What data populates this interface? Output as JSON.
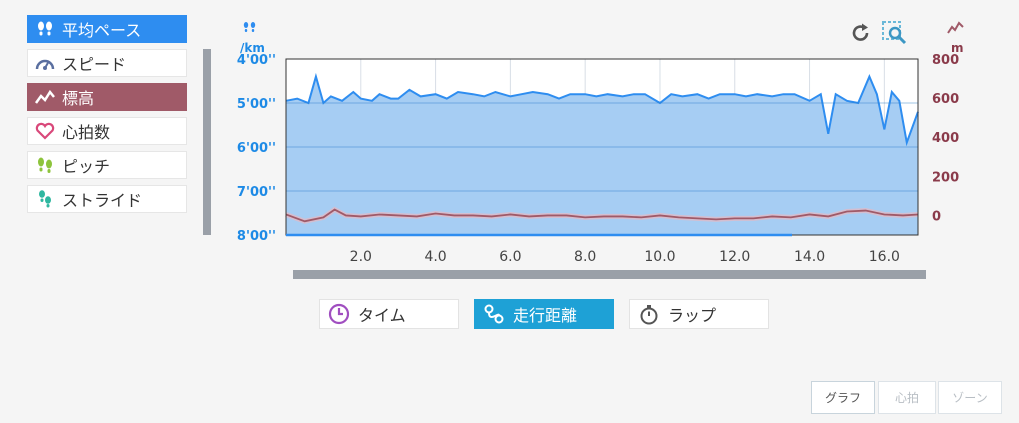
{
  "metrics": [
    {
      "label": "平均ペース",
      "icon": "footprints-icon",
      "state": "active-pace"
    },
    {
      "label": "スピード",
      "icon": "speedometer-icon",
      "state": ""
    },
    {
      "label": "標高",
      "icon": "elevation-icon",
      "state": "active-elev"
    },
    {
      "label": "心拍数",
      "icon": "heart-icon",
      "state": ""
    },
    {
      "label": "ピッチ",
      "icon": "pitch-footprints-icon",
      "state": ""
    },
    {
      "label": "ストライド",
      "icon": "stride-footprints-icon",
      "state": ""
    }
  ],
  "left_axis_unit": "/km",
  "right_axis_unit": "m",
  "x_modes": [
    {
      "label": "タイム",
      "icon": "clock-icon",
      "active": false
    },
    {
      "label": "走行距離",
      "icon": "route-icon",
      "active": true
    },
    {
      "label": "ラップ",
      "icon": "stopwatch-icon",
      "active": false
    }
  ],
  "tabs": [
    {
      "label": "グラフ",
      "disabled": false
    },
    {
      "label": "心拍",
      "disabled": true
    },
    {
      "label": "ゾーン",
      "disabled": true
    }
  ],
  "tools": {
    "reset_icon": "reset-icon",
    "zoom_icon": "zoom-icon"
  },
  "colors": {
    "pace": "#2e8df0",
    "elevation": "#a05a68",
    "active_mode": "#1ea1d6"
  },
  "chart_data": {
    "type": "area",
    "xlabel": "",
    "xlim": [
      0,
      16.9
    ],
    "x_ticks": [
      "2.0",
      "4.0",
      "6.0",
      "8.0",
      "10.0",
      "12.0",
      "14.0",
      "16.0"
    ],
    "x_tick_values": [
      2,
      4,
      6,
      8,
      10,
      12,
      14,
      16
    ],
    "y_left": {
      "label": "/km",
      "ticks": [
        "4'00''",
        "5'00''",
        "6'00''",
        "7'00''",
        "8'00''"
      ],
      "tick_minutes": [
        4,
        5,
        6,
        7,
        8
      ],
      "range_minutes": [
        4,
        8
      ]
    },
    "y_right": {
      "label": "m",
      "ticks": [
        "800",
        "600",
        "400",
        "200",
        "0"
      ],
      "tick_values": [
        800,
        600,
        400,
        200,
        0
      ],
      "range": [
        -100,
        800
      ]
    },
    "series": [
      {
        "axis": "left",
        "x": [
          0.0,
          0.3,
          0.6,
          0.8,
          1.0,
          1.2,
          1.5,
          1.8,
          2.0,
          2.3,
          2.5,
          2.8,
          3.0,
          3.3,
          3.6,
          4.0,
          4.3,
          4.6,
          5.0,
          5.3,
          5.6,
          6.0,
          6.3,
          6.6,
          7.0,
          7.3,
          7.6,
          8.0,
          8.3,
          8.6,
          9.0,
          9.3,
          9.6,
          10.0,
          10.3,
          10.6,
          11.0,
          11.3,
          11.6,
          12.0,
          12.3,
          12.6,
          13.0,
          13.3,
          13.6,
          14.0,
          14.3,
          14.5,
          14.7,
          15.0,
          15.3,
          15.6,
          15.8,
          16.0,
          16.2,
          16.4,
          16.6,
          16.9
        ],
        "y": [
          4.95,
          4.9,
          5.0,
          4.4,
          5.0,
          4.85,
          4.95,
          4.75,
          4.9,
          4.95,
          4.8,
          4.9,
          4.9,
          4.7,
          4.85,
          4.8,
          4.9,
          4.75,
          4.8,
          4.85,
          4.75,
          4.85,
          4.8,
          4.75,
          4.8,
          4.9,
          4.8,
          4.8,
          4.85,
          4.8,
          4.85,
          4.8,
          4.8,
          5.0,
          4.8,
          4.85,
          4.8,
          4.9,
          4.8,
          4.8,
          4.85,
          4.8,
          4.85,
          4.8,
          4.8,
          4.95,
          4.8,
          5.7,
          4.8,
          4.95,
          5.0,
          4.4,
          4.8,
          5.6,
          4.75,
          4.95,
          5.9,
          5.2
        ]
      },
      {
        "axis": "right",
        "x": [
          0.0,
          0.5,
          1.0,
          1.3,
          1.6,
          2.0,
          2.5,
          3.0,
          3.5,
          4.0,
          4.5,
          5.0,
          5.5,
          6.0,
          6.5,
          7.0,
          7.5,
          8.0,
          8.5,
          9.0,
          9.5,
          10.0,
          10.5,
          11.0,
          11.5,
          12.0,
          12.5,
          13.0,
          13.5,
          14.0,
          14.5,
          15.0,
          15.5,
          16.0,
          16.5,
          16.9
        ],
        "y": [
          5,
          -30,
          -10,
          30,
          0,
          -5,
          5,
          0,
          -5,
          10,
          0,
          0,
          -5,
          5,
          -5,
          0,
          0,
          -10,
          -5,
          -5,
          -10,
          0,
          -10,
          -15,
          -20,
          -15,
          -15,
          -5,
          -10,
          5,
          -5,
          20,
          25,
          5,
          0,
          5
        ]
      }
    ]
  }
}
